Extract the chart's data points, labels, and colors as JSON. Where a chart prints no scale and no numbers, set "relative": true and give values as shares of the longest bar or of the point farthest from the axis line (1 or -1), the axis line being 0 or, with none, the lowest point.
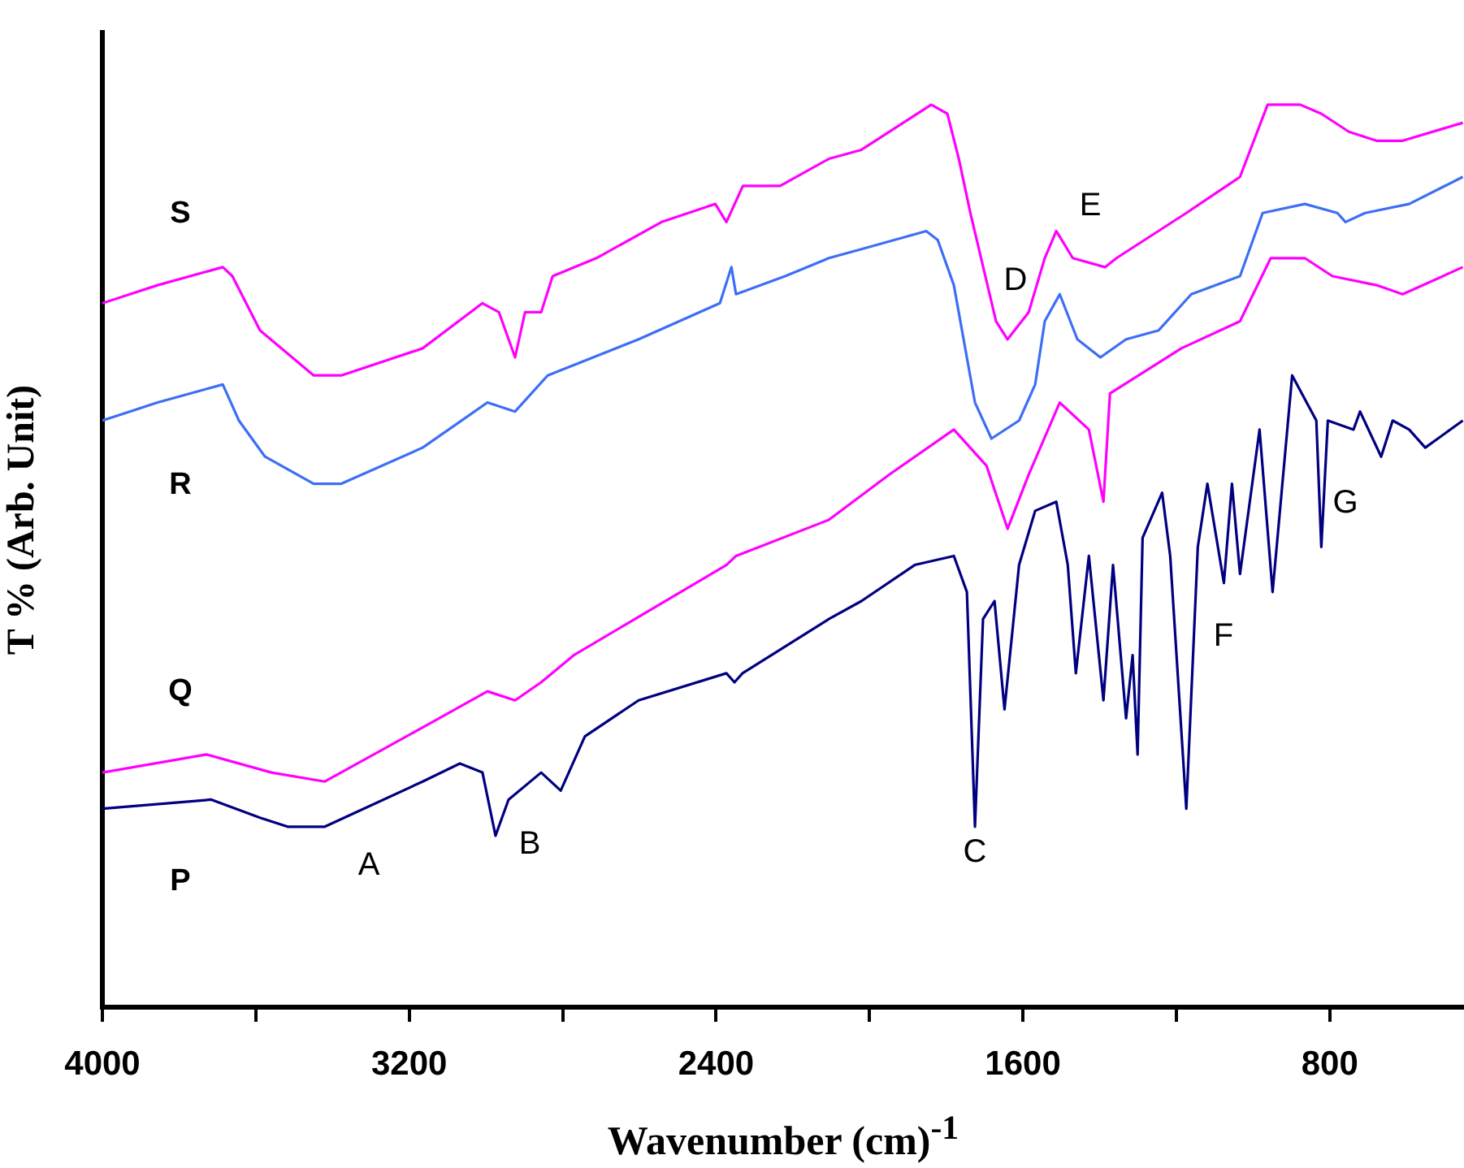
{
  "chart_data": {
    "type": "line",
    "relative": true,
    "xlabel": "Wavenumber (cm)$^{-1}$",
    "ylabel": "T % (Arb. Unit)",
    "xlim": [
      4000,
      450
    ],
    "xticks": [
      4000,
      {
        "value": 3600,
        "label": null
      },
      3200,
      {
        "value": 2800,
        "label": null
      },
      2400,
      {
        "value": 2000,
        "label": null
      },
      1600,
      {
        "value": 1200,
        "label": null
      },
      800
    ],
    "grid": false,
    "legend": false,
    "marker": "none",
    "line_style": "solid",
    "series": [
      {
        "name": "S",
        "color": "#ff00ff",
        "x": [
          4000,
          3856,
          3686,
          3661,
          3589,
          3449,
          3377,
          3165,
          3009,
          2966,
          2924,
          2898,
          2856,
          2826,
          2712,
          2542,
          2402,
          2373,
          2330,
          2233,
          2106,
          2021,
          1839,
          1797,
          1767,
          1737,
          1670,
          1640,
          1585,
          1543,
          1513,
          1470,
          1386,
          1356,
          1174,
          1034,
          962,
          877,
          822,
          750,
          678,
          610,
          453
        ],
        "values": [
          0.78,
          0.8,
          0.82,
          0.81,
          0.75,
          0.7,
          0.7,
          0.73,
          0.78,
          0.77,
          0.72,
          0.77,
          0.77,
          0.81,
          0.83,
          0.87,
          0.89,
          0.87,
          0.91,
          0.91,
          0.94,
          0.95,
          1.0,
          0.99,
          0.94,
          0.88,
          0.76,
          0.74,
          0.77,
          0.83,
          0.86,
          0.83,
          0.82,
          0.83,
          0.88,
          0.92,
          1.0,
          1.0,
          0.99,
          0.97,
          0.96,
          0.96,
          0.98
        ]
      },
      {
        "name": "R",
        "color": "#3d6ef5",
        "x": [
          4000,
          3856,
          3686,
          3644,
          3576,
          3449,
          3377,
          3165,
          2996,
          2924,
          2839,
          2602,
          2390,
          2360,
          2348,
          2220,
          2106,
          2021,
          1852,
          1822,
          1780,
          1725,
          1682,
          1610,
          1568,
          1543,
          1504,
          1458,
          1398,
          1331,
          1246,
          1161,
          1034,
          975,
          865,
          780,
          759,
          708,
          593,
          453
        ],
        "values": [
          0.65,
          0.67,
          0.69,
          0.65,
          0.61,
          0.58,
          0.58,
          0.62,
          0.67,
          0.66,
          0.7,
          0.74,
          0.78,
          0.82,
          0.79,
          0.81,
          0.83,
          0.84,
          0.86,
          0.85,
          0.8,
          0.67,
          0.63,
          0.65,
          0.69,
          0.76,
          0.79,
          0.74,
          0.72,
          0.74,
          0.75,
          0.79,
          0.81,
          0.88,
          0.89,
          0.88,
          0.87,
          0.88,
          0.89,
          0.92
        ]
      },
      {
        "name": "Q",
        "color": "#ff00ff",
        "x": [
          4000,
          3729,
          3559,
          3420,
          3165,
          2996,
          2924,
          2856,
          2771,
          2373,
          2348,
          2106,
          1949,
          1780,
          1695,
          1640,
          1585,
          1504,
          1428,
          1390,
          1373,
          1187,
          1034,
          954,
          865,
          793,
          678,
          610,
          453
        ],
        "values": [
          0.26,
          0.28,
          0.26,
          0.25,
          0.31,
          0.35,
          0.34,
          0.36,
          0.39,
          0.49,
          0.5,
          0.54,
          0.59,
          0.64,
          0.6,
          0.53,
          0.59,
          0.67,
          0.64,
          0.56,
          0.68,
          0.73,
          0.76,
          0.83,
          0.83,
          0.81,
          0.8,
          0.79,
          0.82
        ]
      },
      {
        "name": "P",
        "color": "#000080",
        "x": [
          4000,
          3716,
          3589,
          3517,
          3420,
          3165,
          3068,
          3009,
          2975,
          2941,
          2856,
          2805,
          2742,
          2602,
          2373,
          2352,
          2331,
          2106,
          2021,
          1882,
          1780,
          1746,
          1725,
          1704,
          1674,
          1648,
          1610,
          1568,
          1513,
          1483,
          1462,
          1428,
          1390,
          1365,
          1331,
          1314,
          1301,
          1288,
          1237,
          1216,
          1174,
          1144,
          1119,
          1076,
          1055,
          1034,
          983,
          949,
          898,
          835,
          822,
          805,
          738,
          721,
          666,
          636,
          593,
          551,
          453
        ],
        "values": [
          0.22,
          0.23,
          0.21,
          0.2,
          0.2,
          0.25,
          0.27,
          0.26,
          0.19,
          0.23,
          0.26,
          0.24,
          0.3,
          0.34,
          0.37,
          0.36,
          0.37,
          0.43,
          0.45,
          0.49,
          0.5,
          0.46,
          0.2,
          0.43,
          0.45,
          0.33,
          0.49,
          0.55,
          0.56,
          0.49,
          0.37,
          0.5,
          0.34,
          0.49,
          0.32,
          0.39,
          0.28,
          0.52,
          0.57,
          0.5,
          0.22,
          0.51,
          0.58,
          0.47,
          0.58,
          0.48,
          0.64,
          0.46,
          0.7,
          0.65,
          0.51,
          0.65,
          0.64,
          0.66,
          0.61,
          0.65,
          0.64,
          0.62,
          0.65
        ]
      }
    ],
    "annotations": [
      "A",
      "B",
      "C",
      "D",
      "E",
      "F",
      "G"
    ]
  }
}
